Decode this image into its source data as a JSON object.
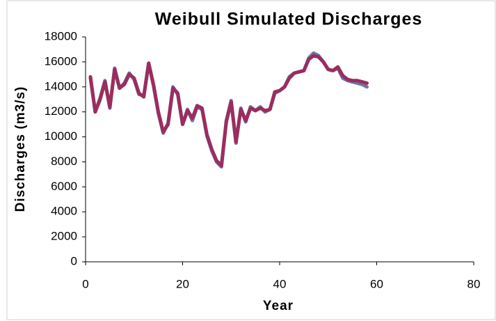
{
  "chart_data": {
    "type": "line",
    "title": "Weibull Simulated Discharges",
    "x_label": "Year",
    "y_label": "Discharges (m3/s)",
    "x": [
      1,
      2,
      3,
      4,
      5,
      6,
      7,
      8,
      9,
      10,
      11,
      12,
      13,
      14,
      15,
      16,
      17,
      18,
      19,
      20,
      21,
      22,
      23,
      24,
      25,
      26,
      27,
      28,
      29,
      30,
      31,
      32,
      33,
      34,
      35,
      36,
      37,
      38,
      39,
      40,
      41,
      42,
      43,
      44,
      45,
      46,
      47,
      48,
      49,
      50,
      51,
      52,
      53,
      54,
      55,
      56,
      57,
      58
    ],
    "series": [
      {
        "color": "#6b74a8",
        "values": [
          14700,
          12000,
          13100,
          14500,
          12300,
          15500,
          13900,
          14300,
          15100,
          14600,
          13400,
          13300,
          15900,
          14100,
          11900,
          10300,
          11100,
          14000,
          13400,
          11000,
          12200,
          11300,
          12400,
          12200,
          10100,
          8900,
          8000,
          7600,
          11300,
          12900,
          9500,
          12300,
          11200,
          12400,
          12100,
          12400,
          12000,
          12200,
          13500,
          13700,
          14000,
          14800,
          15100,
          15200,
          15300,
          16300,
          16700,
          16500,
          16000,
          15400,
          15300,
          15500,
          14700,
          14500,
          14400,
          14300,
          14200,
          14000
        ]
      },
      {
        "color": "#9b2d5e",
        "values": [
          14800,
          12000,
          13000,
          14400,
          12400,
          15400,
          13900,
          14200,
          15000,
          14700,
          13500,
          13200,
          15900,
          14200,
          12000,
          10400,
          11000,
          13900,
          13500,
          11000,
          12100,
          11500,
          12500,
          12300,
          10200,
          9000,
          8100,
          7700,
          11200,
          12800,
          9600,
          12200,
          11300,
          12300,
          12100,
          12300,
          12100,
          12200,
          13600,
          13700,
          14000,
          14700,
          15100,
          15200,
          15300,
          16200,
          16500,
          16400,
          16000,
          15400,
          15300,
          15600,
          14900,
          14600,
          14500,
          14500,
          14400,
          14300
        ]
      }
    ],
    "xlim": [
      0,
      80
    ],
    "xticks": [
      0,
      20,
      40,
      60,
      80
    ],
    "ylim": [
      0,
      18000
    ],
    "yticks": [
      0,
      2000,
      4000,
      6000,
      8000,
      10000,
      12000,
      14000,
      16000,
      18000
    ]
  }
}
